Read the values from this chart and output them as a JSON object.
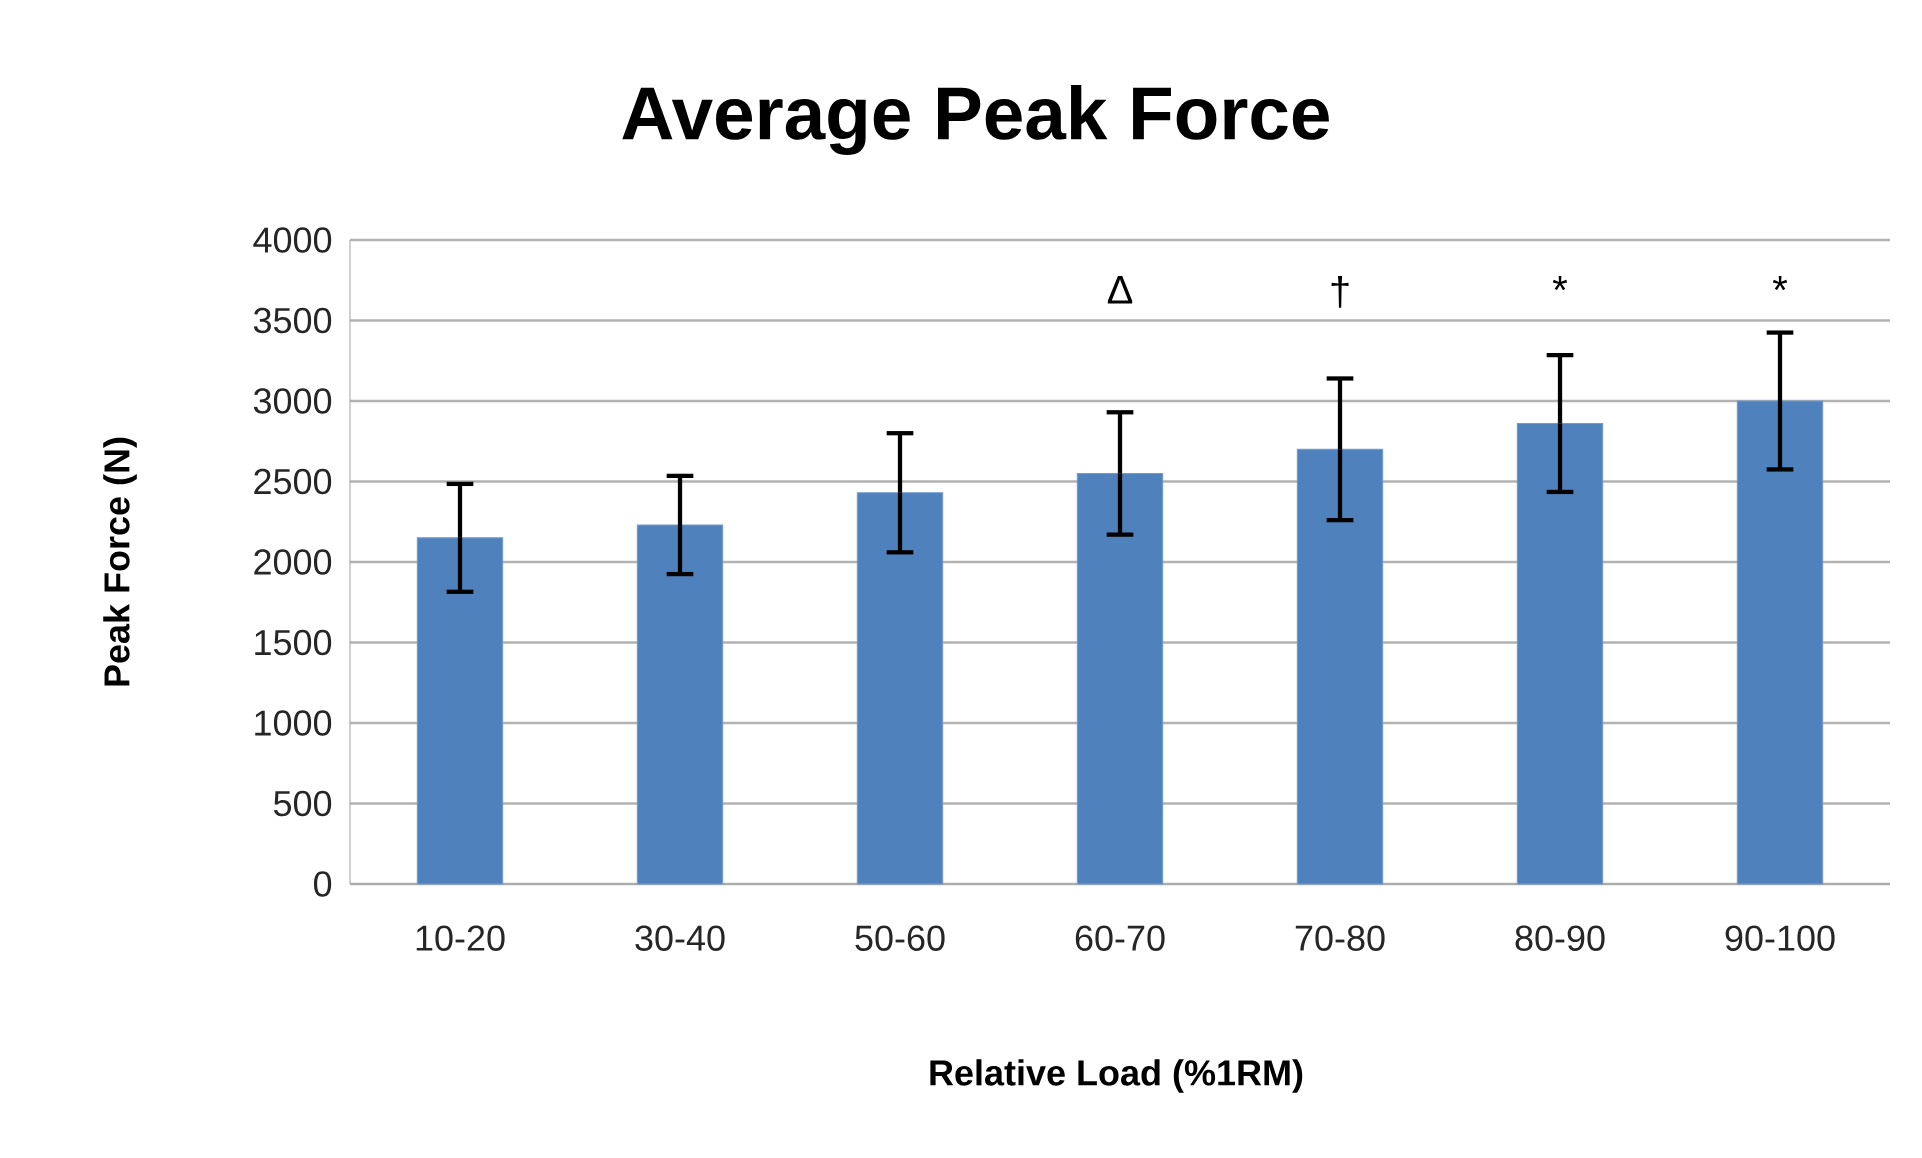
{
  "chart_data": {
    "type": "bar",
    "title": "Average Peak Force",
    "xlabel": "Relative Load (%1RM)",
    "ylabel": "Peak Force (N)",
    "categories": [
      "10-20",
      "30-40",
      "50-60",
      "60-70",
      "70-80",
      "80-90",
      "90-100"
    ],
    "values": [
      2150,
      2230,
      2430,
      2550,
      2700,
      2860,
      3000
    ],
    "errors": [
      335,
      305,
      370,
      380,
      440,
      425,
      425
    ],
    "color": "#4f81bd",
    "ylim": [
      0,
      4000
    ],
    "yticks": [
      0,
      500,
      1000,
      1500,
      2000,
      2500,
      3000,
      3500,
      4000
    ],
    "grid": "y",
    "annotations": [
      "Δ",
      "†",
      "*",
      "*"
    ]
  }
}
